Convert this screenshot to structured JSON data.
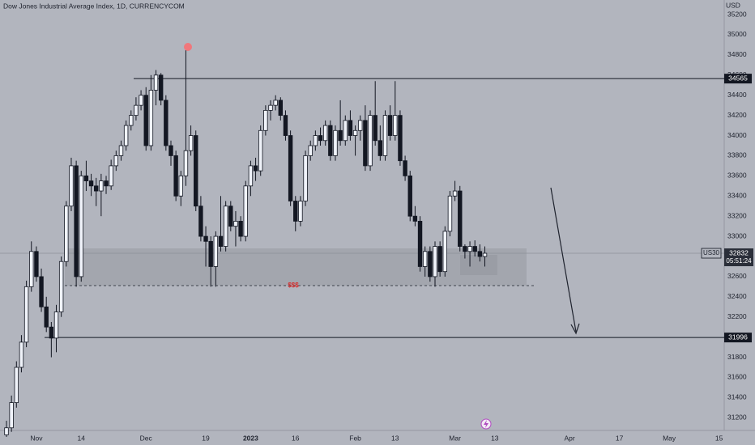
{
  "chart_data": {
    "type": "candlestick",
    "title": "Dow Jones Industrial Average Index, 1D, CURRENCYCOM",
    "currency": "USD",
    "up_color": "#f0f3fa",
    "down_color": "#131722",
    "open": [
      31030,
      31100,
      31350,
      31700,
      31950,
      32500,
      32850,
      32600,
      32300,
      32100,
      31990,
      32250,
      32750,
      33300,
      33700,
      32600,
      33600,
      33550,
      33500,
      33450,
      33550,
      33500,
      33700,
      33800,
      33900,
      34100,
      34200,
      34300,
      34400,
      33900,
      34450,
      34600,
      34350,
      33900,
      33800,
      33400,
      33600,
      33850,
      34000,
      33300,
      33000,
      32950,
      32700,
      33000,
      32900,
      33300,
      33100,
      33150,
      33000,
      33500,
      33700,
      33650,
      34050,
      34250,
      34300,
      34350,
      34200,
      34000,
      33350,
      33150,
      33350,
      33800,
      33900,
      34000,
      33950,
      34100,
      33800,
      34050,
      33950,
      34150,
      34000,
      34050,
      34150,
      33700,
      34200,
      33950,
      33800,
      34200,
      34000,
      34200,
      33750,
      33600,
      33200,
      33150,
      32700,
      32850,
      32600,
      32900,
      32650,
      33050,
      33400,
      33450,
      32900,
      32850,
      32900,
      32850,
      32800
    ],
    "high": [
      31170,
      31420,
      31760,
      32020,
      32560,
      32950,
      32900,
      32680,
      32400,
      32150,
      32320,
      32800,
      33350,
      33780,
      33750,
      33650,
      33750,
      33620,
      33580,
      33620,
      33600,
      33760,
      33850,
      33950,
      34150,
      34250,
      34380,
      34450,
      34480,
      34600,
      34650,
      34620,
      34400,
      33950,
      33850,
      33650,
      34880,
      34100,
      34050,
      33400,
      33100,
      33000,
      33050,
      33400,
      33350,
      33350,
      33250,
      33200,
      33550,
      33750,
      33780,
      34100,
      34300,
      34350,
      34400,
      34380,
      34250,
      34050,
      33400,
      33400,
      33850,
      33950,
      34050,
      34080,
      34150,
      34150,
      34100,
      34350,
      34200,
      34250,
      34100,
      34200,
      34300,
      34250,
      34540,
      34100,
      34250,
      34300,
      34540,
      34250,
      33800,
      33650,
      33300,
      33200,
      32900,
      32900,
      32950,
      32950,
      33100,
      33450,
      33550,
      33500,
      32920,
      32950,
      32960,
      32920,
      32900
    ],
    "low": [
      31010,
      31060,
      31300,
      31650,
      31900,
      32450,
      32550,
      32250,
      32050,
      31800,
      31850,
      32200,
      32700,
      33250,
      32500,
      32550,
      33450,
      33400,
      33300,
      33200,
      33420,
      33460,
      33650,
      33750,
      33850,
      34050,
      34150,
      34250,
      33850,
      33850,
      34300,
      34300,
      33850,
      33700,
      33350,
      33300,
      33500,
      33800,
      33250,
      32950,
      32700,
      32500,
      32500,
      32850,
      32850,
      33050,
      32900,
      32950,
      32950,
      33400,
      33550,
      33600,
      34000,
      34150,
      34250,
      34150,
      33950,
      33300,
      33050,
      33100,
      33300,
      33750,
      33850,
      33900,
      33900,
      33750,
      33750,
      33900,
      33900,
      33950,
      33800,
      33950,
      33650,
      33650,
      33900,
      33750,
      33750,
      33950,
      33950,
      33700,
      33550,
      33150,
      33100,
      32650,
      32600,
      32550,
      32500,
      32600,
      32600,
      33000,
      33350,
      32850,
      32780,
      32700,
      32800,
      32750,
      32700
    ],
    "close": [
      31100,
      31350,
      31700,
      31950,
      32500,
      32850,
      32600,
      32300,
      32100,
      31990,
      32250,
      32750,
      33300,
      33700,
      32600,
      33600,
      33550,
      33500,
      33450,
      33550,
      33500,
      33700,
      33800,
      33900,
      34100,
      34200,
      34300,
      34400,
      33900,
      34450,
      34600,
      34350,
      33900,
      33800,
      33400,
      33600,
      33850,
      34000,
      33300,
      33000,
      32950,
      32700,
      33000,
      32900,
      33300,
      33100,
      33150,
      33000,
      33500,
      33700,
      33650,
      34050,
      34250,
      34300,
      34350,
      34200,
      34000,
      33350,
      33150,
      33350,
      33800,
      33900,
      34000,
      33950,
      34100,
      33800,
      34050,
      33950,
      34150,
      34000,
      34050,
      34150,
      33700,
      34200,
      33950,
      33800,
      34200,
      34000,
      34200,
      33750,
      33600,
      33200,
      33150,
      32700,
      32850,
      32600,
      32900,
      32650,
      33050,
      33400,
      33450,
      32900,
      32850,
      32900,
      32850,
      32800,
      32832
    ],
    "xlim": [
      -1.3,
      144.2
    ],
    "xticks": [
      {
        "value": 6,
        "label": "Nov"
      },
      {
        "value": 15,
        "label": "14"
      },
      {
        "value": 28,
        "label": "Dec"
      },
      {
        "value": 40,
        "label": "19"
      },
      {
        "value": 49,
        "label": "2023"
      },
      {
        "value": 58,
        "label": "16"
      },
      {
        "value": 70,
        "label": "Feb"
      },
      {
        "value": 78,
        "label": "13"
      },
      {
        "value": 90,
        "label": "Mar"
      },
      {
        "value": 98,
        "label": "13"
      },
      {
        "value": 113,
        "label": "Apr"
      },
      {
        "value": 123,
        "label": "17"
      },
      {
        "value": 133,
        "label": "May"
      },
      {
        "value": 143,
        "label": "15"
      }
    ],
    "ylim": [
      31090,
      35345
    ],
    "yticks": [
      35200,
      35000,
      34800,
      34600,
      34400,
      34200,
      34000,
      33800,
      33600,
      33400,
      33200,
      33000,
      32800,
      32600,
      32400,
      32200,
      32000,
      31800,
      31600,
      31400,
      31200
    ],
    "levels": [
      34565,
      31996
    ],
    "symbol": "US30",
    "last_price": 32832,
    "countdown": "05:51:24",
    "annotation": "$$$"
  }
}
